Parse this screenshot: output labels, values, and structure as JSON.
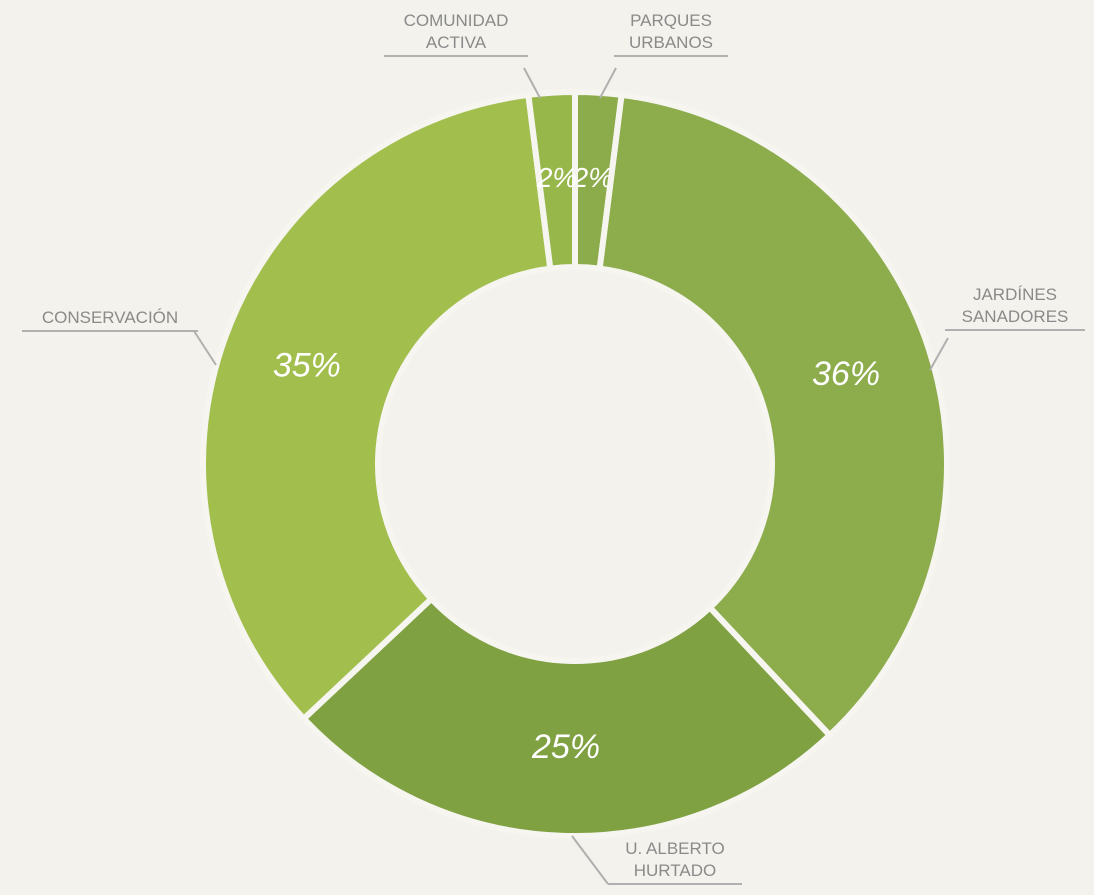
{
  "chart_data": {
    "type": "donut",
    "categories": [
      "PARQUES URBANOS",
      "JARDÍNES SANADORES",
      "U. ALBERTO HURTADO",
      "CONSERVACIÓN",
      "COMUNIDAD ACTIVA"
    ],
    "values": [
      2,
      36,
      25,
      35,
      2
    ],
    "value_labels": [
      "2%",
      "36%",
      "25%",
      "35%",
      "2%"
    ],
    "colors": [
      "#8cab4b",
      "#8dac4c",
      "#7fa142",
      "#a2bf4e",
      "#98b74b"
    ]
  }
}
